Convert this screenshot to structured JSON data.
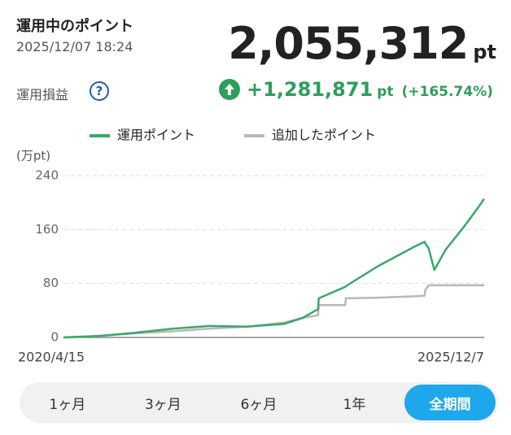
{
  "header": {
    "title": "運用中のポイント",
    "timestamp": "2025/12/07 18:24",
    "total": "2,055,312",
    "total_unit": "pt",
    "profit_label": "運用損益",
    "help_icon": "?",
    "profit": "+1,281,871",
    "profit_unit": "pt",
    "profit_rate": "(+165.74%)"
  },
  "chart_data": {
    "type": "line",
    "y_label": "(万pt)",
    "x": [
      "2020/4/15",
      "2020/10/1",
      "2021/4/1",
      "2021/10/1",
      "2022/4/1",
      "2022/10/1",
      "2023/4/1",
      "2023/7/1",
      "2023/9/15",
      "2023/9/18",
      "2024/1/26",
      "2024/1/29",
      "2024/7/1",
      "2024/10/1",
      "2025/1/1",
      "2025/2/19",
      "2025/2/21",
      "2025/3/10",
      "2025/4/7",
      "2025/6/1",
      "2025/9/1",
      "2025/11/1",
      "2025/12/7"
    ],
    "series": [
      {
        "name": "運用ポイント",
        "color": "#3aa86b",
        "values": [
          0,
          2,
          7,
          13,
          17,
          16,
          20,
          29,
          42,
          58,
          75,
          76,
          105,
          120,
          135,
          142,
          140,
          132,
          100,
          130,
          165,
          190,
          205.5
        ]
      },
      {
        "name": "追加したポイント",
        "color": "#b8b8b8",
        "values": [
          0,
          2,
          6,
          9,
          13,
          16,
          22,
          29,
          33,
          48,
          48,
          58,
          59,
          60,
          61,
          62,
          70,
          77.3,
          77.3,
          77.3,
          77.3,
          77.3,
          77.3
        ]
      }
    ],
    "xlim": [
      "2020/4/15",
      "2025/12/7"
    ],
    "xticks": [
      "2020/4/15",
      "2025/12/7"
    ],
    "ylim": [
      0,
      240
    ],
    "yticks": [
      0,
      80,
      160,
      240
    ],
    "grid": true
  },
  "tabs": {
    "items": [
      "1ヶ月",
      "3ヶ月",
      "6ヶ月",
      "1年",
      "全期間"
    ],
    "active": 4
  }
}
